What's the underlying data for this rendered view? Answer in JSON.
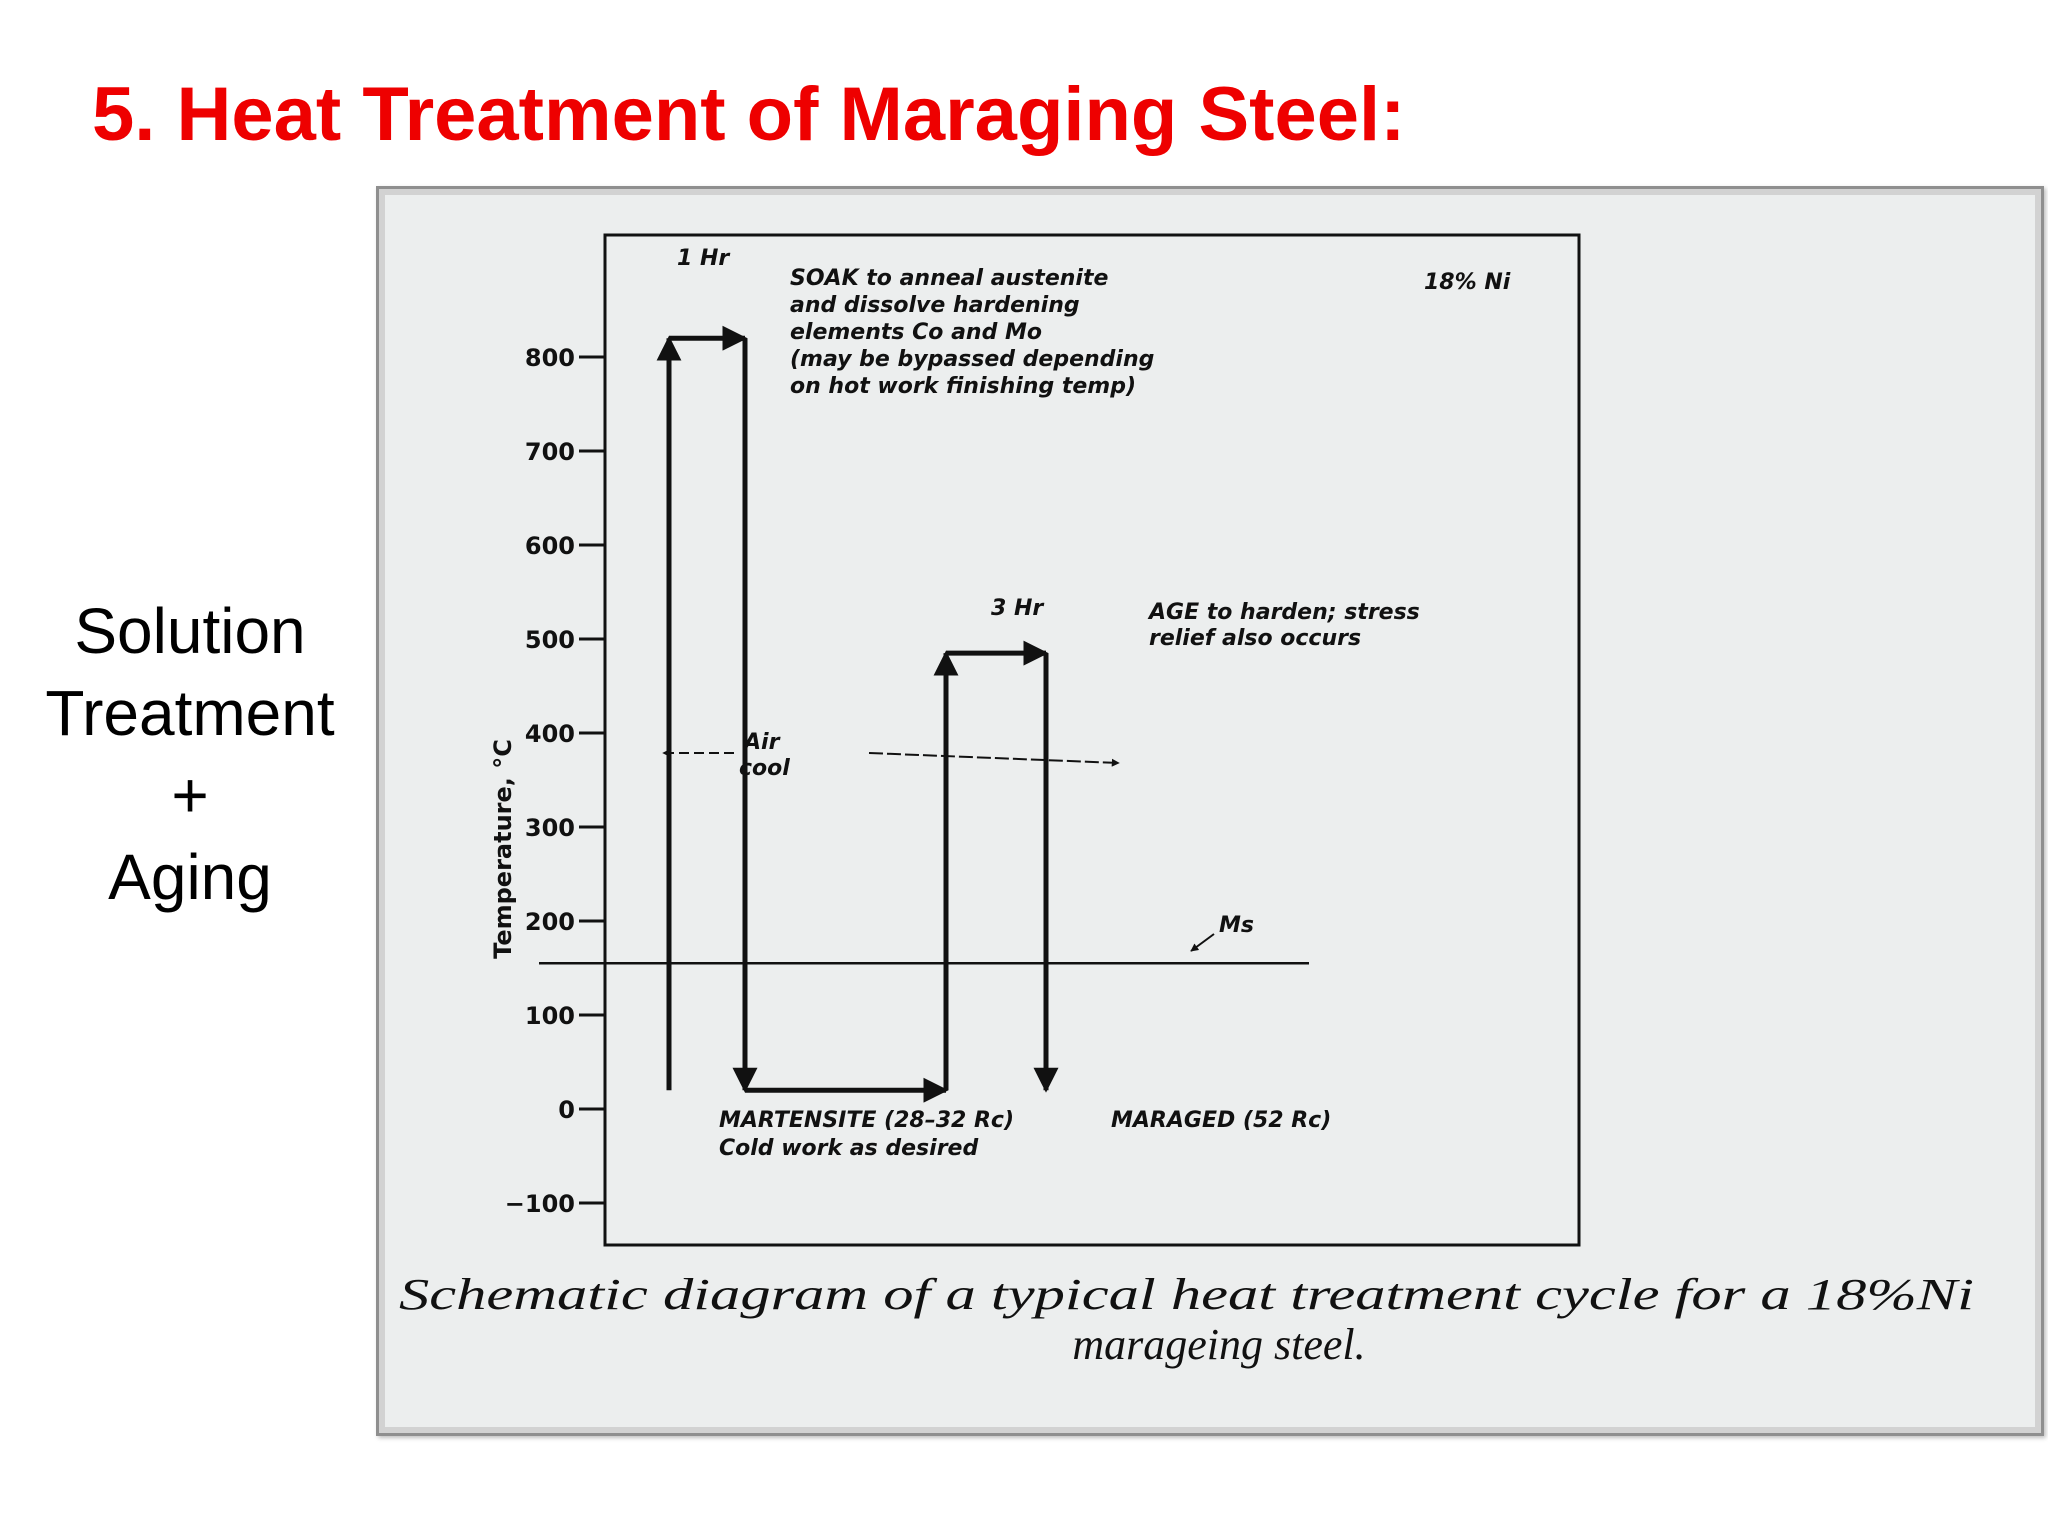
{
  "slide": {
    "title": "5. Heat Treatment of Maraging Steel:",
    "title_color": "#ee0000",
    "side_label": [
      "Solution",
      "Treatment",
      "+",
      "Aging"
    ]
  },
  "chart_data": {
    "type": "line",
    "title": "18% Ni",
    "ylabel": "Temperature, °C",
    "xlabel": "",
    "ylim": [
      -100,
      900
    ],
    "yticks": [
      -100,
      0,
      100,
      200,
      300,
      400,
      500,
      600,
      700,
      800
    ],
    "caption": [
      "Schematic diagram of a typical heat treatment cycle for a 18%Ni",
      "marageing steel."
    ],
    "series": [
      {
        "x": [
          0,
          0,
          1,
          1,
          4,
          4,
          7,
          7
        ],
        "y": [
          20,
          820,
          820,
          20,
          20,
          485,
          485,
          20
        ]
      }
    ],
    "ms_line": {
      "label": "Ms",
      "y": 155
    },
    "annotations": {
      "soak_duration": "1 Hr",
      "soak": [
        "SOAK to anneal austenite",
        "and dissolve hardening",
        "elements Co and Mo",
        "(may be bypassed depending",
        "on hot work finishing temp)"
      ],
      "age_duration": "3 Hr",
      "age": [
        "AGE to harden; stress",
        "relief also occurs"
      ],
      "air_cool": [
        "Air",
        "cool"
      ],
      "martensite": [
        "MARTENSITE (28–32 Rc)",
        "Cold work as desired"
      ],
      "maraged": "MARAGED (52 Rc)"
    }
  },
  "colors": {
    "figure_background": "#eceeee",
    "ink": "#111111"
  }
}
